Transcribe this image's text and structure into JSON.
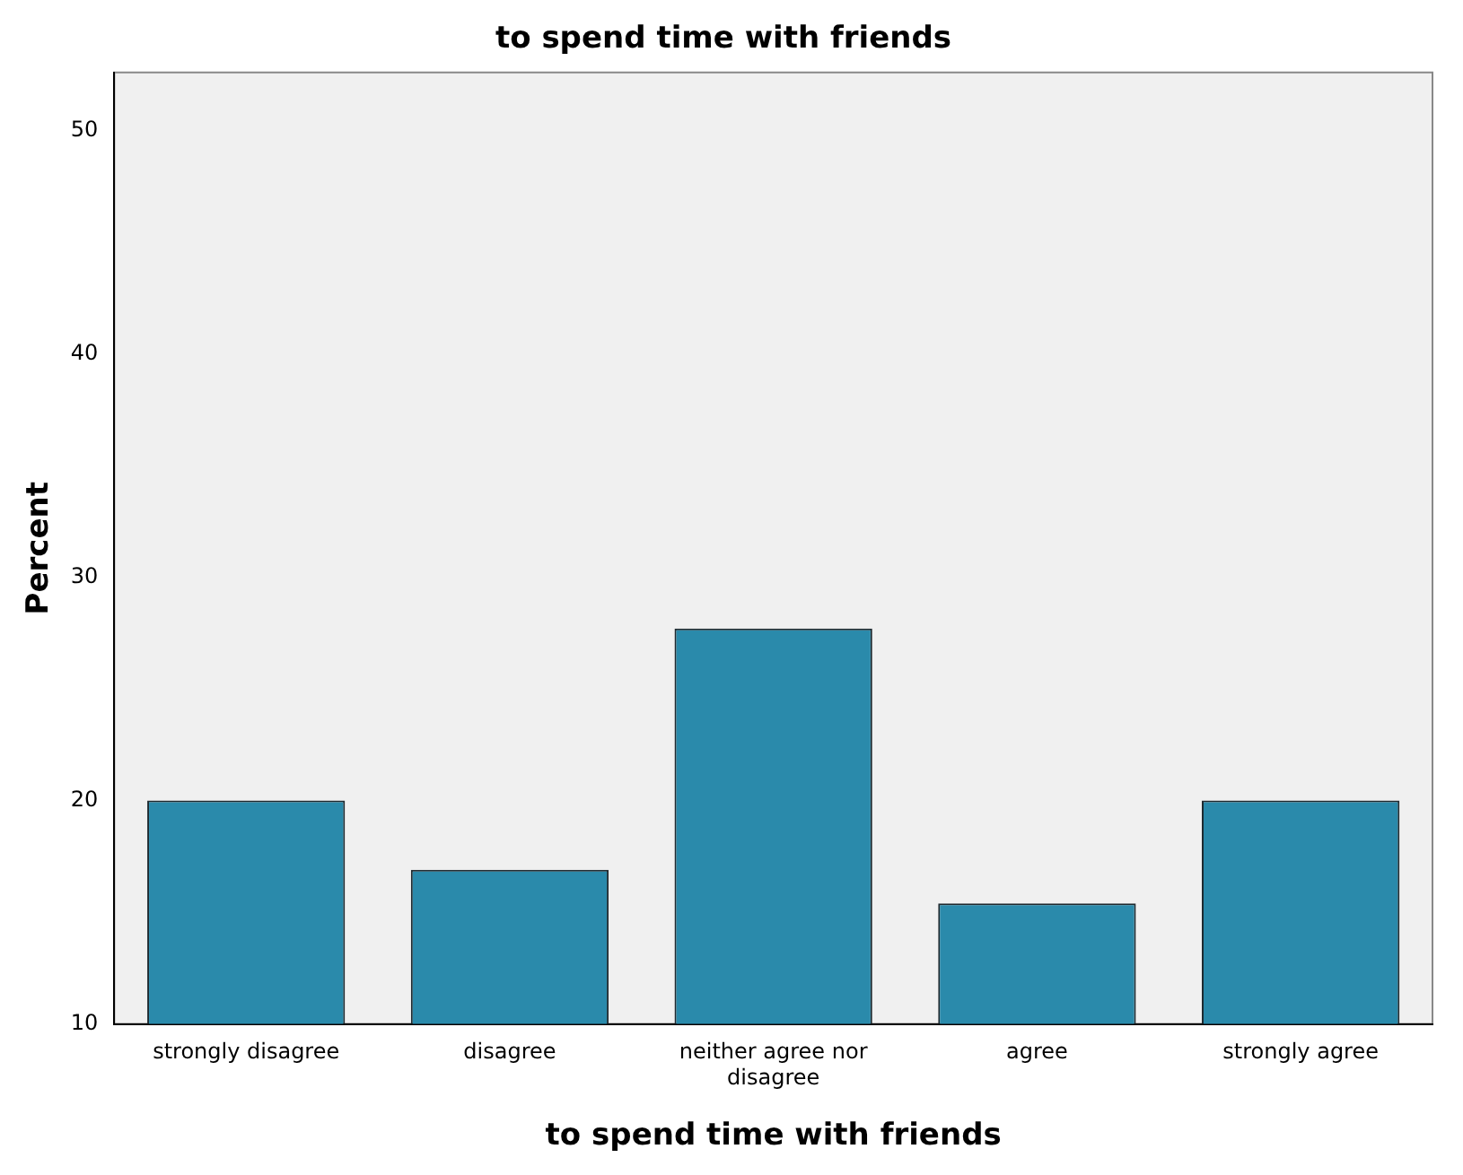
{
  "chart_data": {
    "type": "bar",
    "title": "to spend time with friends",
    "xlabel": "to spend time with friends",
    "ylabel": "Percent",
    "categories": [
      "strongly disagree",
      "disagree",
      "neither agree nor disagree",
      "agree",
      "strongly agree"
    ],
    "values": [
      20.0,
      16.9,
      27.7,
      15.4,
      20.0
    ],
    "color": "#2a8aab",
    "ylim": [
      10,
      52.6
    ],
    "yticks": [
      10,
      20,
      30,
      40,
      50
    ],
    "grid": false,
    "legend": false
  }
}
